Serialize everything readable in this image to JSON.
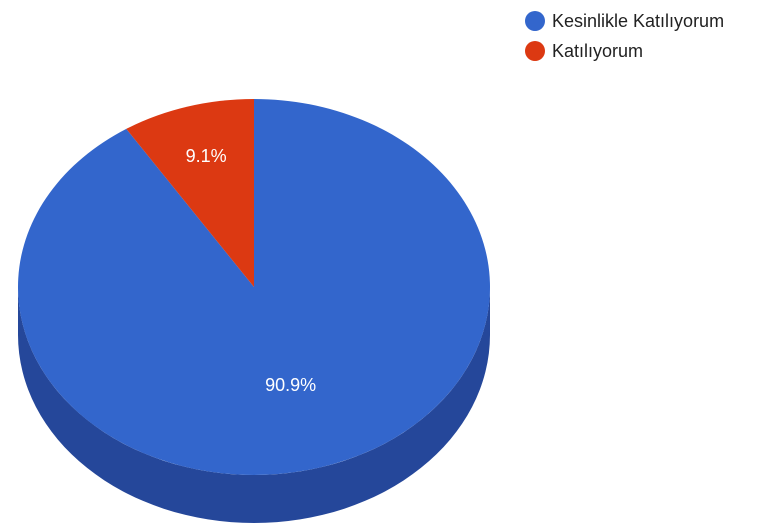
{
  "chart_data": {
    "type": "pie",
    "title": "",
    "three_d": true,
    "legend_position": "top-right",
    "slices": [
      {
        "label": "Kesinlikle Katılıyorum",
        "value": 90.9,
        "display": "90.9%",
        "color": "#3366cc",
        "side_color": "#25479a"
      },
      {
        "label": "Katılıyorum",
        "value": 9.1,
        "display": "9.1%",
        "color": "#dc3912",
        "side_color": "#a52a0d"
      }
    ]
  }
}
